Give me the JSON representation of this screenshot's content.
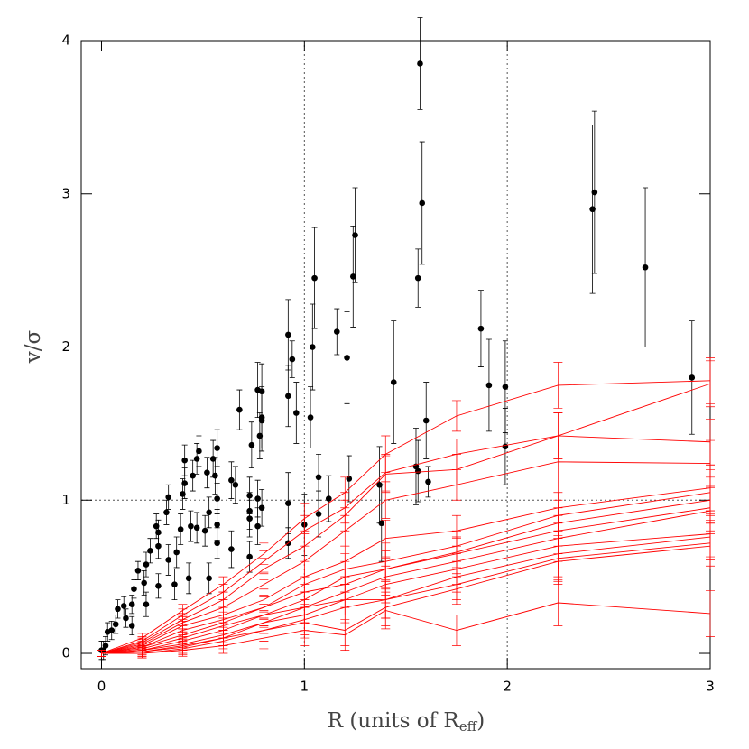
{
  "chart_data": {
    "type": "scatter",
    "x_label": {
      "text": "R (units of R",
      "subscript": "eff",
      "suffix": ")"
    },
    "y_label": "v/σ",
    "xlim": [
      -0.1,
      3
    ],
    "ylim": [
      -0.1,
      4
    ],
    "xticks": [
      0,
      1,
      2,
      3
    ],
    "yticks": [
      0,
      1,
      2,
      3,
      4
    ],
    "ref_lines": {
      "x": [
        1,
        2
      ],
      "y": [
        1,
        2
      ]
    },
    "series": [
      {
        "type": "scatter",
        "color": "#000000",
        "x": [
          1.57,
          1.58,
          1.56,
          2.43,
          2.42,
          2.68,
          2.91,
          1.87,
          1.91,
          1.99,
          1.99,
          1.25,
          1.24,
          1.21,
          1.22,
          1.16,
          1.05,
          1.04,
          1.03,
          1.0,
          0.92,
          0.94,
          0.92,
          0.96,
          0.92,
          0.92,
          1.07,
          1.07,
          1.12,
          1.44,
          1.55,
          1.56,
          1.6,
          1.61,
          1.37,
          1.38,
          0.79,
          0.77,
          0.79,
          0.79,
          0.78,
          0.74,
          0.68,
          0.64,
          0.66,
          0.73,
          0.73,
          0.73,
          0.77,
          0.77,
          0.79,
          0.73,
          0.64,
          0.57,
          0.56,
          0.55,
          0.52,
          0.48,
          0.47,
          0.45,
          0.41,
          0.41,
          0.4,
          0.44,
          0.47,
          0.51,
          0.53,
          0.57,
          0.57,
          0.57,
          0.53,
          0.43,
          0.39,
          0.37,
          0.36,
          0.33,
          0.33,
          0.32,
          0.28,
          0.28,
          0.28,
          0.27,
          0.24,
          0.22,
          0.21,
          0.22,
          0.18,
          0.16,
          0.15,
          0.15,
          0.12,
          0.11,
          0.08,
          0.07,
          0.05,
          0.03,
          0.02,
          0.01,
          0.0
        ],
        "values": [
          3.85,
          2.94,
          2.45,
          3.01,
          2.9,
          2.52,
          1.8,
          2.12,
          1.75,
          1.74,
          1.35,
          2.73,
          2.46,
          1.93,
          1.14,
          2.1,
          2.45,
          2.0,
          1.54,
          0.84,
          2.08,
          1.92,
          1.68,
          1.57,
          0.98,
          0.72,
          1.15,
          0.91,
          1.01,
          1.77,
          1.22,
          1.19,
          1.52,
          1.12,
          1.1,
          0.85,
          1.71,
          1.72,
          1.54,
          1.52,
          1.42,
          1.36,
          1.59,
          1.13,
          1.1,
          1.03,
          0.93,
          0.88,
          1.01,
          0.83,
          0.95,
          0.63,
          0.68,
          1.34,
          1.16,
          1.27,
          1.18,
          1.32,
          1.27,
          1.16,
          1.26,
          1.11,
          1.04,
          0.83,
          0.82,
          0.8,
          0.92,
          1.01,
          0.84,
          0.72,
          0.49,
          0.49,
          0.81,
          0.66,
          0.45,
          0.61,
          1.02,
          0.92,
          0.79,
          0.7,
          0.44,
          0.83,
          0.67,
          0.58,
          0.46,
          0.32,
          0.54,
          0.42,
          0.32,
          0.18,
          0.23,
          0.31,
          0.29,
          0.19,
          0.15,
          0.14,
          0.05,
          0.02,
          0.02
        ],
        "errors": [
          0.3,
          0.4,
          0.19,
          0.53,
          0.55,
          0.52,
          0.37,
          0.25,
          0.3,
          0.3,
          0.25,
          0.31,
          0.33,
          0.3,
          0.15,
          0.15,
          0.33,
          0.28,
          0.2,
          0.2,
          0.23,
          0.12,
          0.2,
          0.2,
          0.2,
          0.1,
          0.15,
          0.15,
          0.15,
          0.4,
          0.25,
          0.2,
          0.25,
          0.1,
          0.25,
          0.25,
          0.18,
          0.18,
          0.2,
          0.2,
          0.15,
          0.15,
          0.13,
          0.12,
          0.12,
          0.12,
          0.12,
          0.12,
          0.12,
          0.12,
          0.12,
          0.1,
          0.12,
          0.12,
          0.12,
          0.12,
          0.1,
          0.1,
          0.1,
          0.1,
          0.1,
          0.1,
          0.1,
          0.1,
          0.1,
          0.1,
          0.1,
          0.1,
          0.1,
          0.1,
          0.1,
          0.1,
          0.1,
          0.1,
          0.1,
          0.1,
          0.08,
          0.08,
          0.08,
          0.08,
          0.08,
          0.08,
          0.08,
          0.08,
          0.08,
          0.08,
          0.06,
          0.06,
          0.06,
          0.06,
          0.06,
          0.06,
          0.06,
          0.06,
          0.06,
          0.06,
          0.06,
          0.06,
          0.06
        ]
      },
      {
        "type": "line",
        "color": "#ff0000",
        "x": [
          0,
          0.2,
          0.4,
          0.6,
          0.8,
          1.0,
          1.2,
          1.4,
          1.75,
          2.25,
          3.0
        ],
        "values": [
          0,
          0.1,
          0.28,
          0.45,
          0.65,
          0.88,
          1.05,
          1.3,
          1.55,
          1.75,
          1.78
        ],
        "errors": [
          0.02,
          0.03,
          0.04,
          0.05,
          0.07,
          0.1,
          0.1,
          0.12,
          0.1,
          0.15,
          0.15
        ]
      },
      {
        "type": "line",
        "color": "#ff0000",
        "x": [
          0,
          0.2,
          0.4,
          0.6,
          0.8,
          1.0,
          1.2,
          1.4,
          1.75,
          2.25,
          3.0
        ],
        "values": [
          0,
          0.08,
          0.25,
          0.4,
          0.6,
          0.8,
          0.95,
          1.18,
          1.3,
          1.42,
          1.76
        ],
        "errors": [
          0.02,
          0.03,
          0.04,
          0.05,
          0.07,
          0.1,
          0.1,
          0.12,
          0.1,
          0.15,
          0.15
        ]
      },
      {
        "type": "line",
        "color": "#ff0000",
        "x": [
          0,
          0.2,
          0.4,
          0.6,
          0.8,
          1.0,
          1.2,
          1.4,
          1.75,
          2.25,
          3.0
        ],
        "values": [
          0,
          0.07,
          0.22,
          0.35,
          0.55,
          0.7,
          0.9,
          1.17,
          1.2,
          1.42,
          1.38
        ],
        "errors": [
          0.02,
          0.03,
          0.04,
          0.05,
          0.07,
          0.1,
          0.1,
          0.12,
          0.1,
          0.15,
          0.15
        ]
      },
      {
        "type": "line",
        "color": "#ff0000",
        "x": [
          0,
          0.2,
          0.4,
          0.6,
          0.8,
          1.0,
          1.2,
          1.4,
          1.75,
          2.25,
          3.0
        ],
        "values": [
          0,
          0.06,
          0.2,
          0.3,
          0.45,
          0.6,
          0.8,
          1.0,
          1.1,
          1.25,
          1.24
        ],
        "errors": [
          0.02,
          0.03,
          0.04,
          0.05,
          0.07,
          0.1,
          0.1,
          0.12,
          0.1,
          0.15,
          0.15
        ]
      },
      {
        "type": "line",
        "color": "#ff0000",
        "x": [
          0,
          0.2,
          0.4,
          0.6,
          0.8,
          1.0,
          1.2,
          1.4,
          1.75,
          2.25,
          3.0
        ],
        "values": [
          0,
          0.05,
          0.18,
          0.25,
          0.35,
          0.5,
          0.6,
          0.75,
          0.8,
          0.95,
          1.08
        ],
        "errors": [
          0.02,
          0.03,
          0.04,
          0.05,
          0.07,
          0.1,
          0.1,
          0.12,
          0.1,
          0.15,
          0.15
        ]
      },
      {
        "type": "line",
        "color": "#ff0000",
        "x": [
          0,
          0.2,
          0.4,
          0.6,
          0.8,
          1.0,
          1.2,
          1.4,
          1.75,
          2.25,
          3.0
        ],
        "values": [
          0,
          0.04,
          0.15,
          0.22,
          0.3,
          0.45,
          0.55,
          0.6,
          0.7,
          0.9,
          1.05
        ],
        "errors": [
          0.02,
          0.03,
          0.04,
          0.05,
          0.07,
          0.1,
          0.1,
          0.12,
          0.1,
          0.15,
          0.15
        ]
      },
      {
        "type": "line",
        "color": "#ff0000",
        "x": [
          0,
          0.2,
          0.4,
          0.6,
          0.8,
          1.0,
          1.2,
          1.4,
          1.75,
          2.25,
          3.0
        ],
        "values": [
          0,
          0.04,
          0.12,
          0.2,
          0.3,
          0.4,
          0.45,
          0.55,
          0.66,
          0.85,
          1.0
        ],
        "errors": [
          0.02,
          0.03,
          0.04,
          0.05,
          0.07,
          0.1,
          0.1,
          0.12,
          0.1,
          0.15,
          0.15
        ]
      },
      {
        "type": "line",
        "color": "#ff0000",
        "x": [
          0,
          0.2,
          0.4,
          0.6,
          0.8,
          1.0,
          1.2,
          1.4,
          1.75,
          2.25,
          3.0
        ],
        "values": [
          0,
          0.03,
          0.1,
          0.18,
          0.25,
          0.35,
          0.5,
          0.55,
          0.65,
          0.8,
          0.95
        ],
        "errors": [
          0.02,
          0.03,
          0.04,
          0.05,
          0.07,
          0.1,
          0.1,
          0.12,
          0.1,
          0.15,
          0.15
        ]
      },
      {
        "type": "line",
        "color": "#ff0000",
        "x": [
          0,
          0.2,
          0.4,
          0.6,
          0.8,
          1.0,
          1.2,
          1.4,
          1.75,
          2.25,
          3.0
        ],
        "values": [
          0,
          0.02,
          0.08,
          0.15,
          0.25,
          0.3,
          0.4,
          0.5,
          0.6,
          0.75,
          0.93
        ],
        "errors": [
          0.02,
          0.03,
          0.04,
          0.05,
          0.07,
          0.1,
          0.1,
          0.12,
          0.1,
          0.15,
          0.15
        ]
      },
      {
        "type": "line",
        "color": "#ff0000",
        "x": [
          0,
          0.2,
          0.4,
          0.6,
          0.8,
          1.0,
          1.2,
          1.4,
          1.75,
          2.25,
          3.0
        ],
        "values": [
          0,
          0.02,
          0.06,
          0.12,
          0.2,
          0.3,
          0.35,
          0.45,
          0.55,
          0.7,
          0.78
        ],
        "errors": [
          0.02,
          0.03,
          0.04,
          0.05,
          0.07,
          0.1,
          0.1,
          0.12,
          0.1,
          0.15,
          0.15
        ]
      },
      {
        "type": "line",
        "color": "#ff0000",
        "x": [
          0,
          0.2,
          0.4,
          0.6,
          0.8,
          1.0,
          1.2,
          1.4,
          1.75,
          2.25,
          3.0
        ],
        "values": [
          0,
          0.01,
          0.05,
          0.1,
          0.2,
          0.25,
          0.35,
          0.35,
          0.5,
          0.65,
          0.76
        ],
        "errors": [
          0.02,
          0.03,
          0.04,
          0.05,
          0.07,
          0.1,
          0.1,
          0.12,
          0.1,
          0.15,
          0.15
        ]
      },
      {
        "type": "line",
        "color": "#ff0000",
        "x": [
          0,
          0.2,
          0.4,
          0.6,
          0.8,
          1.0,
          1.2,
          1.4,
          1.75,
          2.25,
          3.0
        ],
        "values": [
          0,
          0.01,
          0.04,
          0.1,
          0.15,
          0.22,
          0.3,
          0.35,
          0.45,
          0.62,
          0.72
        ],
        "errors": [
          0.02,
          0.03,
          0.04,
          0.05,
          0.07,
          0.1,
          0.1,
          0.12,
          0.1,
          0.15,
          0.15
        ]
      },
      {
        "type": "line",
        "color": "#ff0000",
        "x": [
          0,
          0.2,
          0.4,
          0.6,
          0.8,
          1.0,
          1.2,
          1.4,
          1.75,
          2.25,
          3.0
        ],
        "values": [
          0,
          0,
          0.03,
          0.08,
          0.15,
          0.2,
          0.15,
          0.3,
          0.42,
          0.6,
          0.7
        ],
        "errors": [
          0.02,
          0.03,
          0.04,
          0.05,
          0.07,
          0.1,
          0.1,
          0.12,
          0.1,
          0.15,
          0.15
        ]
      },
      {
        "type": "line",
        "color": "#ff0000",
        "x": [
          0,
          0.2,
          0.4,
          0.6,
          0.8,
          1.0,
          1.2,
          1.4,
          1.75,
          2.25,
          3.0
        ],
        "values": [
          0,
          0,
          0.02,
          0.05,
          0.1,
          0.15,
          0.12,
          0.28,
          0.15,
          0.33,
          0.26
        ],
        "errors": [
          0.02,
          0.03,
          0.04,
          0.05,
          0.07,
          0.1,
          0.1,
          0.12,
          0.1,
          0.15,
          0.15
        ]
      }
    ]
  }
}
